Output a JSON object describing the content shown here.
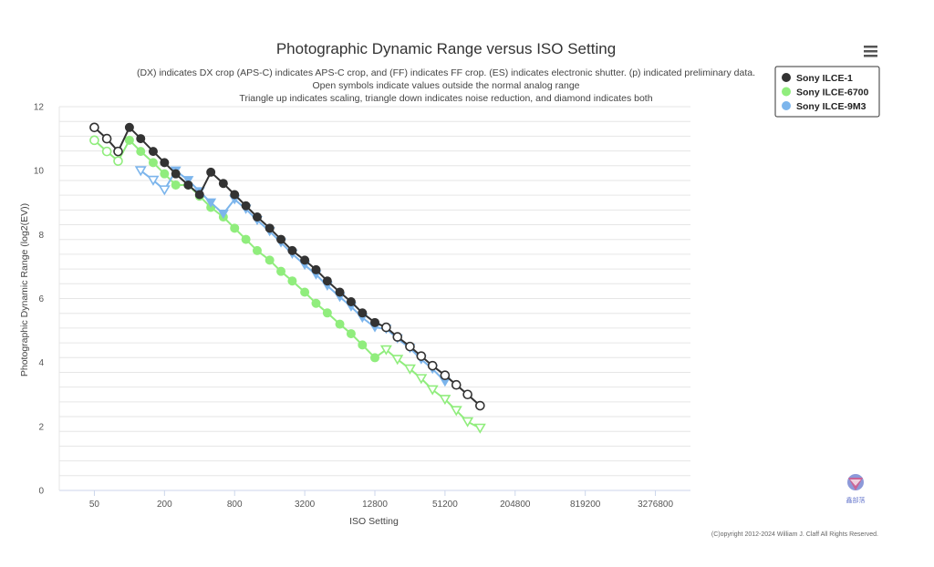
{
  "menu_icon": "hamburger-menu-icon",
  "watermark": {
    "icon": "bird-logo-icon",
    "text": "鑫部落"
  },
  "credits": "(C)opyright 2012-2024 William J. Claff All Rights Reserved.",
  "chart_data": {
    "type": "line",
    "title": "Photographic Dynamic Range versus ISO Setting",
    "subtitle_lines": [
      "(DX) indicates DX crop (APS-C) indicates APS-C crop, and (FF) indicates FF crop. (ES) indicates electronic shutter. (p) indicated preliminary data.",
      "Open symbols indicate values outside the normal analog range",
      "Triangle up indicates scaling, triangle down indicates noise reduction, and diamond indicates both"
    ],
    "xlabel": "ISO Setting",
    "ylabel": "Photographic Dynamic Range (log2(EV))",
    "x_scale": "log2",
    "x_ticks": [
      50,
      200,
      800,
      3200,
      12800,
      51200,
      204800,
      819200,
      3276800
    ],
    "x_tick_labels": [
      "50",
      "200",
      "800",
      "3200",
      "12800",
      "51200",
      "204800",
      "819200",
      "3276800"
    ],
    "xlim": [
      25,
      6553600
    ],
    "ylim": [
      0,
      12
    ],
    "y_ticks": [
      0,
      2,
      4,
      6,
      8,
      10,
      12
    ],
    "grid": true,
    "legend_position": "top-right",
    "series": [
      {
        "name": "Sony ILCE-1",
        "color": "#333333",
        "points": [
          {
            "x": 50,
            "y": 11.35,
            "m": "oc"
          },
          {
            "x": 64,
            "y": 11.0,
            "m": "oc"
          },
          {
            "x": 80,
            "y": 10.6,
            "m": "oc"
          },
          {
            "x": 100,
            "y": 11.35,
            "m": "c"
          },
          {
            "x": 125,
            "y": 11.0,
            "m": "c"
          },
          {
            "x": 160,
            "y": 10.6,
            "m": "c"
          },
          {
            "x": 200,
            "y": 10.25,
            "m": "c"
          },
          {
            "x": 250,
            "y": 9.9,
            "m": "c"
          },
          {
            "x": 320,
            "y": 9.55,
            "m": "c"
          },
          {
            "x": 400,
            "y": 9.25,
            "m": "c"
          },
          {
            "x": 500,
            "y": 9.95,
            "m": "c"
          },
          {
            "x": 640,
            "y": 9.6,
            "m": "c"
          },
          {
            "x": 800,
            "y": 9.25,
            "m": "c"
          },
          {
            "x": 1000,
            "y": 8.9,
            "m": "c"
          },
          {
            "x": 1250,
            "y": 8.55,
            "m": "c"
          },
          {
            "x": 1600,
            "y": 8.2,
            "m": "c"
          },
          {
            "x": 2000,
            "y": 7.85,
            "m": "c"
          },
          {
            "x": 2500,
            "y": 7.5,
            "m": "c"
          },
          {
            "x": 3200,
            "y": 7.2,
            "m": "c"
          },
          {
            "x": 4000,
            "y": 6.9,
            "m": "c"
          },
          {
            "x": 5000,
            "y": 6.55,
            "m": "c"
          },
          {
            "x": 6400,
            "y": 6.2,
            "m": "c"
          },
          {
            "x": 8000,
            "y": 5.9,
            "m": "c"
          },
          {
            "x": 10000,
            "y": 5.55,
            "m": "c"
          },
          {
            "x": 12800,
            "y": 5.25,
            "m": "c"
          },
          {
            "x": 16000,
            "y": 5.1,
            "m": "oc"
          },
          {
            "x": 20000,
            "y": 4.8,
            "m": "oc"
          },
          {
            "x": 25600,
            "y": 4.5,
            "m": "oc"
          },
          {
            "x": 32000,
            "y": 4.2,
            "m": "oc"
          },
          {
            "x": 40000,
            "y": 3.9,
            "m": "oc"
          },
          {
            "x": 51200,
            "y": 3.6,
            "m": "oc"
          },
          {
            "x": 64000,
            "y": 3.3,
            "m": "oc"
          },
          {
            "x": 80000,
            "y": 3.0,
            "m": "oc"
          },
          {
            "x": 102400,
            "y": 2.65,
            "m": "oc"
          }
        ]
      },
      {
        "name": "Sony ILCE-6700",
        "color": "#90ed7d",
        "points": [
          {
            "x": 50,
            "y": 10.95,
            "m": "oc"
          },
          {
            "x": 64,
            "y": 10.6,
            "m": "oc"
          },
          {
            "x": 80,
            "y": 10.3,
            "m": "oc"
          },
          {
            "x": 100,
            "y": 10.95,
            "m": "c"
          },
          {
            "x": 125,
            "y": 10.6,
            "m": "c"
          },
          {
            "x": 160,
            "y": 10.25,
            "m": "c"
          },
          {
            "x": 200,
            "y": 9.9,
            "m": "c"
          },
          {
            "x": 250,
            "y": 9.55,
            "m": "c"
          },
          {
            "x": 320,
            "y": 9.55,
            "m": "c"
          },
          {
            "x": 400,
            "y": 9.2,
            "m": "c"
          },
          {
            "x": 500,
            "y": 8.85,
            "m": "c"
          },
          {
            "x": 640,
            "y": 8.55,
            "m": "c"
          },
          {
            "x": 800,
            "y": 8.2,
            "m": "c"
          },
          {
            "x": 1000,
            "y": 7.85,
            "m": "c"
          },
          {
            "x": 1250,
            "y": 7.5,
            "m": "c"
          },
          {
            "x": 1600,
            "y": 7.2,
            "m": "c"
          },
          {
            "x": 2000,
            "y": 6.85,
            "m": "c"
          },
          {
            "x": 2500,
            "y": 6.55,
            "m": "c"
          },
          {
            "x": 3200,
            "y": 6.2,
            "m": "c"
          },
          {
            "x": 4000,
            "y": 5.85,
            "m": "c"
          },
          {
            "x": 5000,
            "y": 5.55,
            "m": "c"
          },
          {
            "x": 6400,
            "y": 5.2,
            "m": "c"
          },
          {
            "x": 8000,
            "y": 4.9,
            "m": "c"
          },
          {
            "x": 10000,
            "y": 4.55,
            "m": "c"
          },
          {
            "x": 12800,
            "y": 4.15,
            "m": "c"
          },
          {
            "x": 16000,
            "y": 4.4,
            "m": "otd"
          },
          {
            "x": 20000,
            "y": 4.1,
            "m": "otd"
          },
          {
            "x": 25600,
            "y": 3.8,
            "m": "otd"
          },
          {
            "x": 32000,
            "y": 3.5,
            "m": "otd"
          },
          {
            "x": 40000,
            "y": 3.15,
            "m": "otd"
          },
          {
            "x": 51200,
            "y": 2.85,
            "m": "otd"
          },
          {
            "x": 64000,
            "y": 2.5,
            "m": "otd"
          },
          {
            "x": 80000,
            "y": 2.15,
            "m": "otd"
          },
          {
            "x": 102400,
            "y": 1.95,
            "m": "otd"
          }
        ]
      },
      {
        "name": "Sony ILCE-9M3",
        "color": "#7cb5ec",
        "points": [
          {
            "x": 125,
            "y": 10.0,
            "m": "otd"
          },
          {
            "x": 160,
            "y": 9.7,
            "m": "otd"
          },
          {
            "x": 200,
            "y": 9.4,
            "m": "otd"
          },
          {
            "x": 250,
            "y": 10.0,
            "m": "td"
          },
          {
            "x": 320,
            "y": 9.7,
            "m": "td"
          },
          {
            "x": 400,
            "y": 9.35,
            "m": "td"
          },
          {
            "x": 500,
            "y": 9.0,
            "m": "td"
          },
          {
            "x": 640,
            "y": 8.65,
            "m": "td"
          },
          {
            "x": 800,
            "y": 9.1,
            "m": "td"
          },
          {
            "x": 1000,
            "y": 8.8,
            "m": "td"
          },
          {
            "x": 1250,
            "y": 8.45,
            "m": "td"
          },
          {
            "x": 1600,
            "y": 8.1,
            "m": "td"
          },
          {
            "x": 2000,
            "y": 7.75,
            "m": "td"
          },
          {
            "x": 2500,
            "y": 7.4,
            "m": "td"
          },
          {
            "x": 3200,
            "y": 7.05,
            "m": "td"
          },
          {
            "x": 4000,
            "y": 6.75,
            "m": "td"
          },
          {
            "x": 5000,
            "y": 6.4,
            "m": "td"
          },
          {
            "x": 6400,
            "y": 6.05,
            "m": "td"
          },
          {
            "x": 8000,
            "y": 5.75,
            "m": "td"
          },
          {
            "x": 10000,
            "y": 5.4,
            "m": "td"
          },
          {
            "x": 12800,
            "y": 5.1,
            "m": "td"
          },
          {
            "x": 16000,
            "y": 5.05,
            "m": "td"
          },
          {
            "x": 20000,
            "y": 4.75,
            "m": "td"
          },
          {
            "x": 25600,
            "y": 4.45,
            "m": "td"
          },
          {
            "x": 32000,
            "y": 4.1,
            "m": "td"
          },
          {
            "x": 40000,
            "y": 3.8,
            "m": "td"
          },
          {
            "x": 51200,
            "y": 3.4,
            "m": "td"
          }
        ]
      }
    ]
  }
}
